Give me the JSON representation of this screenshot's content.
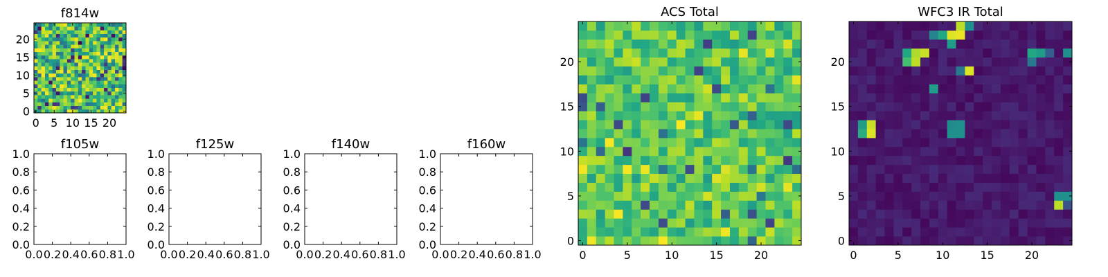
{
  "chart_data": [
    {
      "type": "heatmap",
      "title": "f814w",
      "colormap": "viridis",
      "grid_size": [
        25,
        25
      ],
      "xlim": [
        -0.5,
        24.5
      ],
      "ylim": [
        -0.5,
        24.5
      ],
      "xticks": [
        0,
        5,
        10,
        15,
        20
      ],
      "yticks": [
        0,
        5,
        10,
        15,
        20
      ],
      "value_range": [
        0,
        1
      ],
      "seed": 2,
      "value_mode": "noise"
    },
    {
      "type": "empty",
      "title": "f105w",
      "xlim": [
        0,
        1
      ],
      "ylim": [
        0,
        1
      ],
      "xticks": [
        0.0,
        0.2,
        0.4,
        0.6,
        0.8,
        1.0
      ],
      "yticks": [
        0.0,
        0.2,
        0.4,
        0.6,
        0.8,
        1.0
      ]
    },
    {
      "type": "empty",
      "title": "f125w",
      "xlim": [
        0,
        1
      ],
      "ylim": [
        0,
        1
      ],
      "xticks": [
        0.0,
        0.2,
        0.4,
        0.6,
        0.8,
        1.0
      ],
      "yticks": [
        0.0,
        0.2,
        0.4,
        0.6,
        0.8,
        1.0
      ]
    },
    {
      "type": "empty",
      "title": "f140w",
      "xlim": [
        0,
        1
      ],
      "ylim": [
        0,
        1
      ],
      "xticks": [
        0.0,
        0.2,
        0.4,
        0.6,
        0.8,
        1.0
      ],
      "yticks": [
        0.0,
        0.2,
        0.4,
        0.6,
        0.8,
        1.0
      ]
    },
    {
      "type": "empty",
      "title": "f160w",
      "xlim": [
        0,
        1
      ],
      "ylim": [
        0,
        1
      ],
      "xticks": [
        0.0,
        0.2,
        0.4,
        0.6,
        0.8,
        1.0
      ],
      "yticks": [
        0.0,
        0.2,
        0.4,
        0.6,
        0.8,
        1.0
      ]
    },
    {
      "type": "heatmap",
      "title": "ACS Total",
      "colormap": "viridis",
      "grid_size": [
        25,
        25
      ],
      "xlim": [
        -0.5,
        24.5
      ],
      "ylim": [
        -0.5,
        24.5
      ],
      "xticks": [
        0,
        5,
        10,
        15,
        20
      ],
      "yticks": [
        0,
        5,
        10,
        15,
        20
      ],
      "value_range": [
        0,
        1
      ],
      "seed": 7,
      "value_mode": "noise_high"
    },
    {
      "type": "heatmap",
      "title": "WFC3 IR Total",
      "colormap": "viridis",
      "grid_size": [
        25,
        25
      ],
      "xlim": [
        -0.5,
        24.5
      ],
      "ylim": [
        -0.5,
        24.5
      ],
      "xticks": [
        0,
        5,
        10,
        15,
        20
      ],
      "yticks": [
        0,
        5,
        10,
        15,
        20
      ],
      "value_range": [
        0,
        1
      ],
      "seed": 13,
      "value_mode": "sparse_sources",
      "sources": [
        {
          "x": 1,
          "y": 12,
          "v": 0.62
        },
        {
          "x": 2,
          "y": 12,
          "v": 0.95
        },
        {
          "x": 1,
          "y": 13,
          "v": 0.55
        },
        {
          "x": 2,
          "y": 13,
          "v": 0.92
        },
        {
          "x": 11,
          "y": 12,
          "v": 0.5
        },
        {
          "x": 12,
          "y": 12,
          "v": 0.5
        },
        {
          "x": 11,
          "y": 13,
          "v": 0.48
        },
        {
          "x": 12,
          "y": 13,
          "v": 0.5
        },
        {
          "x": 7,
          "y": 20,
          "v": 0.9
        },
        {
          "x": 8,
          "y": 21,
          "v": 0.92
        },
        {
          "x": 7,
          "y": 21,
          "v": 0.88
        },
        {
          "x": 6,
          "y": 21,
          "v": 0.6
        },
        {
          "x": 6,
          "y": 20,
          "v": 0.7
        },
        {
          "x": 11,
          "y": 23,
          "v": 0.95
        },
        {
          "x": 12,
          "y": 23,
          "v": 0.97
        },
        {
          "x": 12,
          "y": 24,
          "v": 0.9
        },
        {
          "x": 11,
          "y": 22,
          "v": 0.55
        },
        {
          "x": 10,
          "y": 23,
          "v": 0.6
        },
        {
          "x": 13,
          "y": 24,
          "v": 0.5
        },
        {
          "x": 9,
          "y": 23,
          "v": 0.45
        },
        {
          "x": 13,
          "y": 19,
          "v": 0.95
        },
        {
          "x": 12,
          "y": 19,
          "v": 0.4
        },
        {
          "x": 9,
          "y": 17,
          "v": 0.55
        },
        {
          "x": 20,
          "y": 21,
          "v": 0.6
        },
        {
          "x": 21,
          "y": 21,
          "v": 0.55
        },
        {
          "x": 22,
          "y": 21,
          "v": 0.3
        },
        {
          "x": 24,
          "y": 21,
          "v": 0.5
        },
        {
          "x": 20,
          "y": 20,
          "v": 0.4
        },
        {
          "x": 23,
          "y": 5,
          "v": 0.5
        },
        {
          "x": 24,
          "y": 5,
          "v": 0.5
        },
        {
          "x": 23,
          "y": 4,
          "v": 0.9
        },
        {
          "x": 24,
          "y": 4,
          "v": 0.25
        }
      ]
    }
  ]
}
